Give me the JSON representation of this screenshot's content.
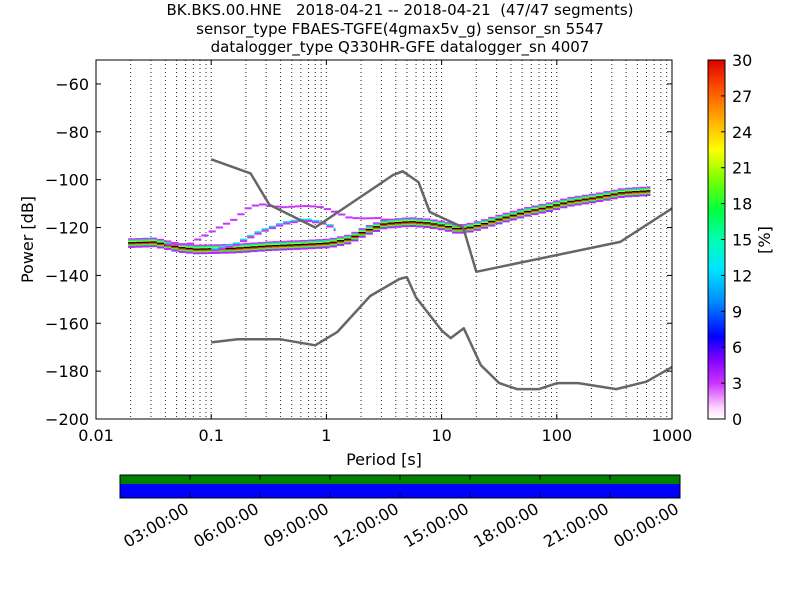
{
  "title": {
    "line1": "BK.BKS.00.HNE   2018-04-21 -- 2018-04-21  (47/47 segments)",
    "line2": "sensor_type FBAES-TGFE(4gmax5v_g) sensor_sn 5547",
    "line3": "datalogger_type Q330HR-GFE datalogger_sn 4007"
  },
  "chart_data": {
    "type": "heatmap",
    "xlabel": "Period [s]",
    "ylabel": "Power [dB]",
    "xscale": "log",
    "xlim": [
      0.01,
      1000
    ],
    "ylim": [
      -200,
      -50
    ],
    "x_ticks": [
      0.01,
      0.1,
      1,
      10,
      100,
      1000
    ],
    "x_tick_labels": [
      "0.01",
      "0.1",
      "1",
      "10",
      "100",
      "1000"
    ],
    "y_ticks": [
      -200,
      -180,
      -160,
      -140,
      -120,
      -100,
      -80,
      -60
    ],
    "y_tick_labels": [
      "−200",
      "−180",
      "−160",
      "−140",
      "−120",
      "−100",
      "−80",
      "−60"
    ],
    "grid": "vertical dotted lines at each log decade subdivision",
    "colorbar": {
      "label": "[%]",
      "range": [
        0,
        30
      ],
      "ticks": [
        0,
        3,
        6,
        9,
        12,
        15,
        18,
        21,
        24,
        27,
        30
      ],
      "colormap": "pqlx (white-purple-blue-cyan-green-yellow-red)"
    },
    "noise_models": [
      {
        "role": "upper",
        "points": [
          [
            0.1,
            -91.5
          ],
          [
            0.22,
            -97.4
          ],
          [
            0.32,
            -110.5
          ],
          [
            0.8,
            -120.0
          ],
          [
            3.8,
            -98.0
          ],
          [
            4.6,
            -96.5
          ],
          [
            6.3,
            -101.0
          ],
          [
            7.9,
            -113.5
          ],
          [
            15.4,
            -120.0
          ],
          [
            20.0,
            -138.5
          ],
          [
            354.8,
            -126.0
          ],
          [
            1000,
            -112.0
          ]
        ]
      },
      {
        "role": "lower",
        "points": [
          [
            0.1,
            -168.0
          ],
          [
            0.17,
            -166.7
          ],
          [
            0.4,
            -166.7
          ],
          [
            0.8,
            -169.2
          ],
          [
            1.24,
            -163.7
          ],
          [
            2.4,
            -148.6
          ],
          [
            4.3,
            -141.5
          ],
          [
            5.0,
            -140.7
          ],
          [
            6.0,
            -149.2
          ],
          [
            10.0,
            -163.0
          ],
          [
            12.0,
            -166.2
          ],
          [
            15.6,
            -162.1
          ],
          [
            21.9,
            -177.5
          ],
          [
            31.6,
            -185.0
          ],
          [
            45.0,
            -187.5
          ],
          [
            70.0,
            -187.5
          ],
          [
            101.0,
            -185.0
          ],
          [
            154.0,
            -185.0
          ],
          [
            328.0,
            -187.5
          ],
          [
            600.0,
            -184.4
          ],
          [
            1000,
            -178.3
          ]
        ]
      }
    ],
    "psd_curves": [
      {
        "role": "main-median",
        "points": [
          [
            0.019,
            -126.5
          ],
          [
            0.03,
            -126.2
          ],
          [
            0.05,
            -128.5
          ],
          [
            0.07,
            -129.2
          ],
          [
            0.15,
            -128.8
          ],
          [
            0.3,
            -127.8
          ],
          [
            0.6,
            -127.2
          ],
          [
            1.0,
            -126.6
          ],
          [
            1.5,
            -124.8
          ],
          [
            2.0,
            -121.7
          ],
          [
            3.0,
            -118.5
          ],
          [
            5.0,
            -117.7
          ],
          [
            7.0,
            -118.2
          ],
          [
            10.0,
            -119.4
          ],
          [
            13.0,
            -120.8
          ],
          [
            16.0,
            -120.2
          ],
          [
            20.0,
            -119.1
          ],
          [
            30.0,
            -116.5
          ],
          [
            50.0,
            -113.6
          ],
          [
            80.0,
            -111.5
          ],
          [
            120.0,
            -109.3
          ],
          [
            200.0,
            -107.7
          ],
          [
            350.0,
            -105.5
          ],
          [
            650.0,
            -104.7
          ]
        ]
      },
      {
        "role": "upper-spread",
        "points": [
          [
            0.1,
            -129.5
          ],
          [
            0.15,
            -127.5
          ],
          [
            0.25,
            -122.0
          ],
          [
            0.4,
            -118.5
          ],
          [
            0.6,
            -117.0
          ],
          [
            0.9,
            -118.5
          ],
          [
            1.2,
            -121.5
          ]
        ]
      },
      {
        "role": "outlier-high",
        "points": [
          [
            0.04,
            -127.0
          ],
          [
            0.06,
            -127.0
          ],
          [
            0.1,
            -121.0
          ],
          [
            0.15,
            -116.5
          ],
          [
            0.2,
            -111.5
          ],
          [
            0.25,
            -110.2
          ],
          [
            0.3,
            -111.0
          ],
          [
            0.4,
            -111.5
          ],
          [
            0.6,
            -111.0
          ],
          [
            0.8,
            -111.3
          ],
          [
            1.0,
            -112.6
          ],
          [
            1.5,
            -116.0
          ],
          [
            2.0,
            -116.2
          ],
          [
            2.7,
            -116.0
          ],
          [
            3.4,
            -117.5
          ]
        ]
      }
    ]
  },
  "timeline": {
    "tick_labels": [
      "03:00:00",
      "06:00:00",
      "09:00:00",
      "12:00:00",
      "15:00:00",
      "18:00:00",
      "21:00:00",
      "00:00:00"
    ],
    "tracks": [
      {
        "name": "data",
        "color": "#008000"
      },
      {
        "name": "coverage",
        "color": "#0000ff"
      }
    ]
  }
}
